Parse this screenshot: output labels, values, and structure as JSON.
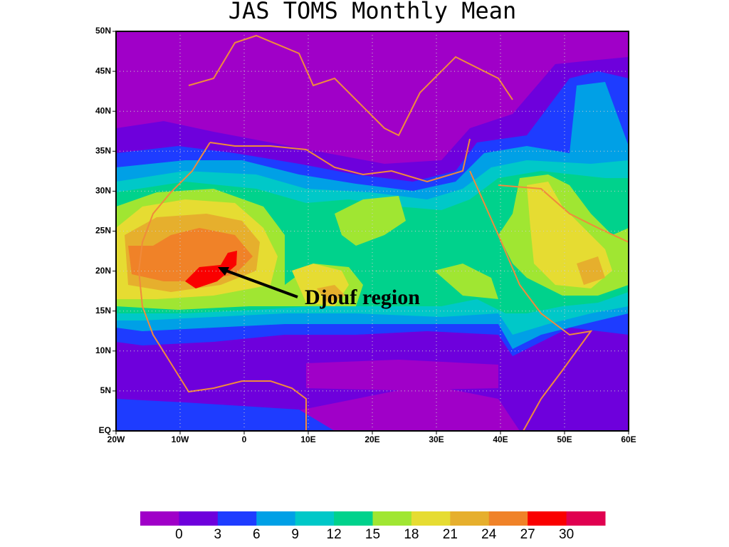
{
  "title": "JAS TOMS Monthly Mean",
  "map": {
    "xlim": [
      -20,
      60
    ],
    "ylim": [
      0,
      50
    ],
    "xticks": [
      {
        "value": -20,
        "label": "20W"
      },
      {
        "value": -10,
        "label": "10W"
      },
      0,
      {
        "value": 10,
        "label": "10E"
      },
      {
        "value": 20,
        "label": "20E"
      },
      {
        "value": 30,
        "label": "30E"
      },
      {
        "value": 40,
        "label": "40E"
      },
      {
        "value": 50,
        "label": "50E"
      },
      {
        "value": 60,
        "label": "60E"
      }
    ],
    "yticks": [
      {
        "value": 0,
        "label": "EQ"
      },
      {
        "value": 5,
        "label": "5N"
      },
      {
        "value": 10,
        "label": "10N"
      },
      {
        "value": 15,
        "label": "15N"
      },
      {
        "value": 20,
        "label": "20N"
      },
      {
        "value": 25,
        "label": "25N"
      },
      {
        "value": 30,
        "label": "30N"
      },
      {
        "value": 35,
        "label": "35N"
      },
      {
        "value": 40,
        "label": "40N"
      },
      {
        "value": 45,
        "label": "45N"
      },
      {
        "value": 50,
        "label": "50N"
      }
    ],
    "grid": true,
    "annotation": "Djouf region"
  },
  "colorbar": {
    "colors": [
      "#a000c8",
      "#6e00dc",
      "#1e3cff",
      "#00a0e6",
      "#00c8c8",
      "#00d28c",
      "#a0e632",
      "#e6dc32",
      "#e6af2d",
      "#f08228",
      "#fa0000",
      "#e00050"
    ],
    "ticks": [
      0,
      3,
      6,
      9,
      12,
      15,
      18,
      21,
      24,
      27,
      30
    ]
  }
}
